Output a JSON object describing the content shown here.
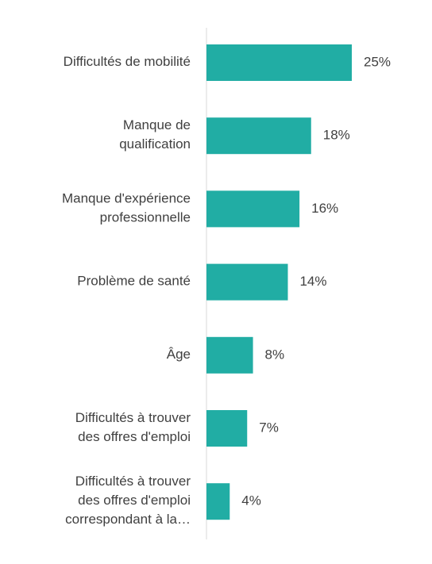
{
  "chart_data": {
    "type": "barh",
    "categories": [
      "Difficultés de mobilité",
      "Manque de\nqualification",
      "Manque d'expérience\nprofessionnelle",
      "Problème de santé",
      "Âge",
      "Difficultés à trouver\ndes offres d'emploi",
      "Difficultés à trouver\ndes offres d'emploi\ncorrespondant à la…"
    ],
    "values": [
      25,
      18,
      16,
      14,
      8,
      7,
      4
    ],
    "value_labels": [
      "25%",
      "18%",
      "16%",
      "14%",
      "8%",
      "7%",
      "4%"
    ],
    "color": "#21ada4",
    "xlim": [
      0,
      25
    ]
  }
}
